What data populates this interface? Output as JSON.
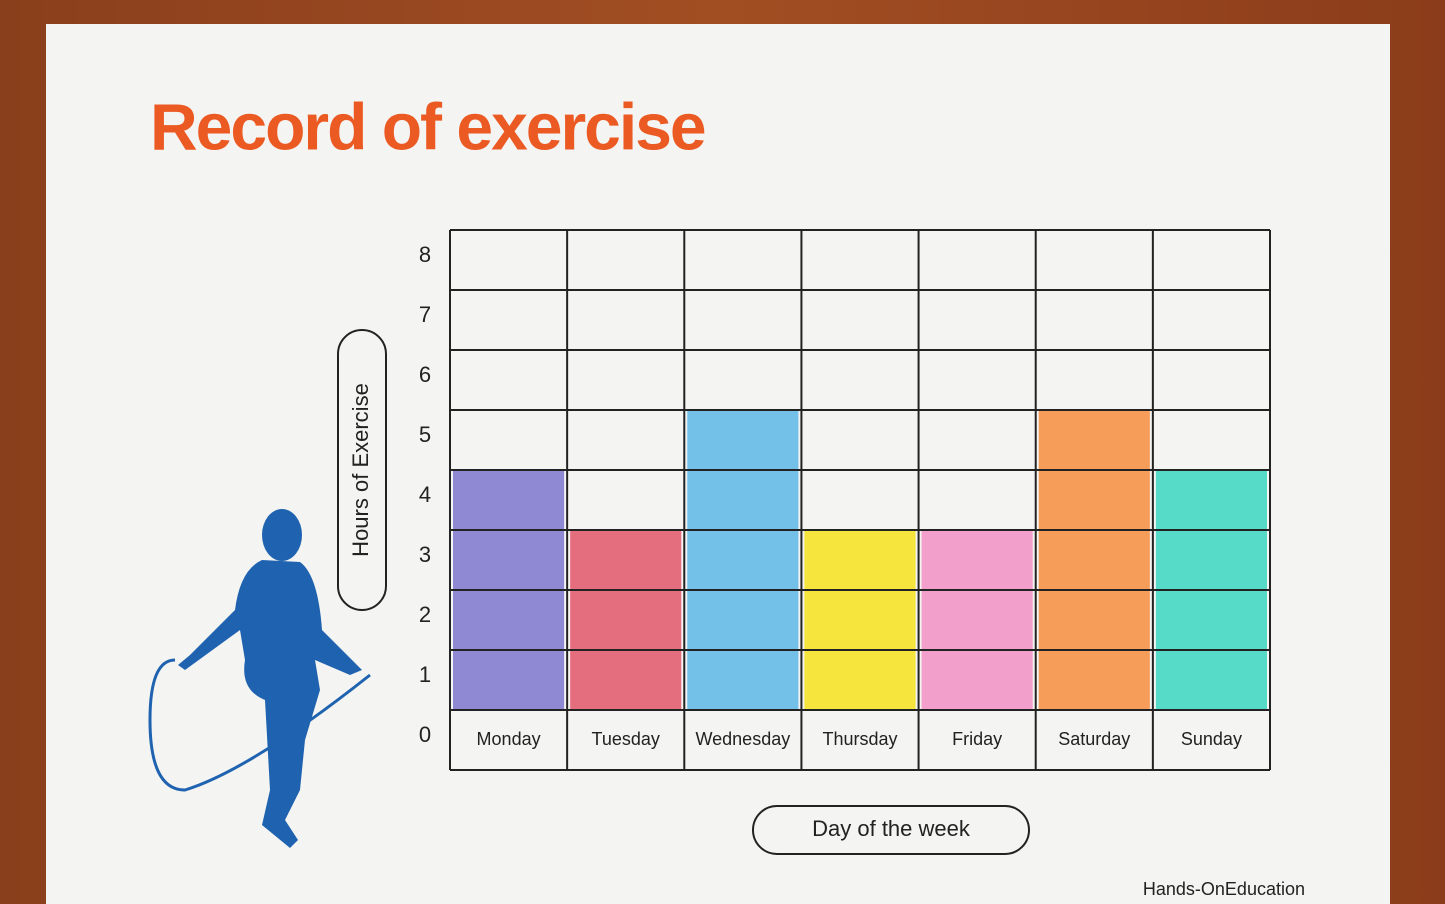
{
  "chart_data": {
    "type": "bar",
    "title": "Record of exercise",
    "categories": [
      "Monday",
      "Tuesday",
      "Wednesday",
      "Thursday",
      "Friday",
      "Saturday",
      "Sunday"
    ],
    "values": [
      4,
      3,
      5,
      3,
      3,
      5,
      4
    ],
    "colors": [
      "#7d74cc",
      "#e0566a",
      "#5cb6e8",
      "#f4e21c",
      "#f28fc4",
      "#f78d40",
      "#3ad6c2"
    ],
    "ylim": [
      0,
      8
    ],
    "yticks": [
      0,
      1,
      2,
      3,
      4,
      5,
      6,
      7,
      8
    ],
    "grid": true,
    "y_label": "Hours of Exercise",
    "x_label": "Day of the week",
    "footer": "Hands-OnEducation"
  }
}
